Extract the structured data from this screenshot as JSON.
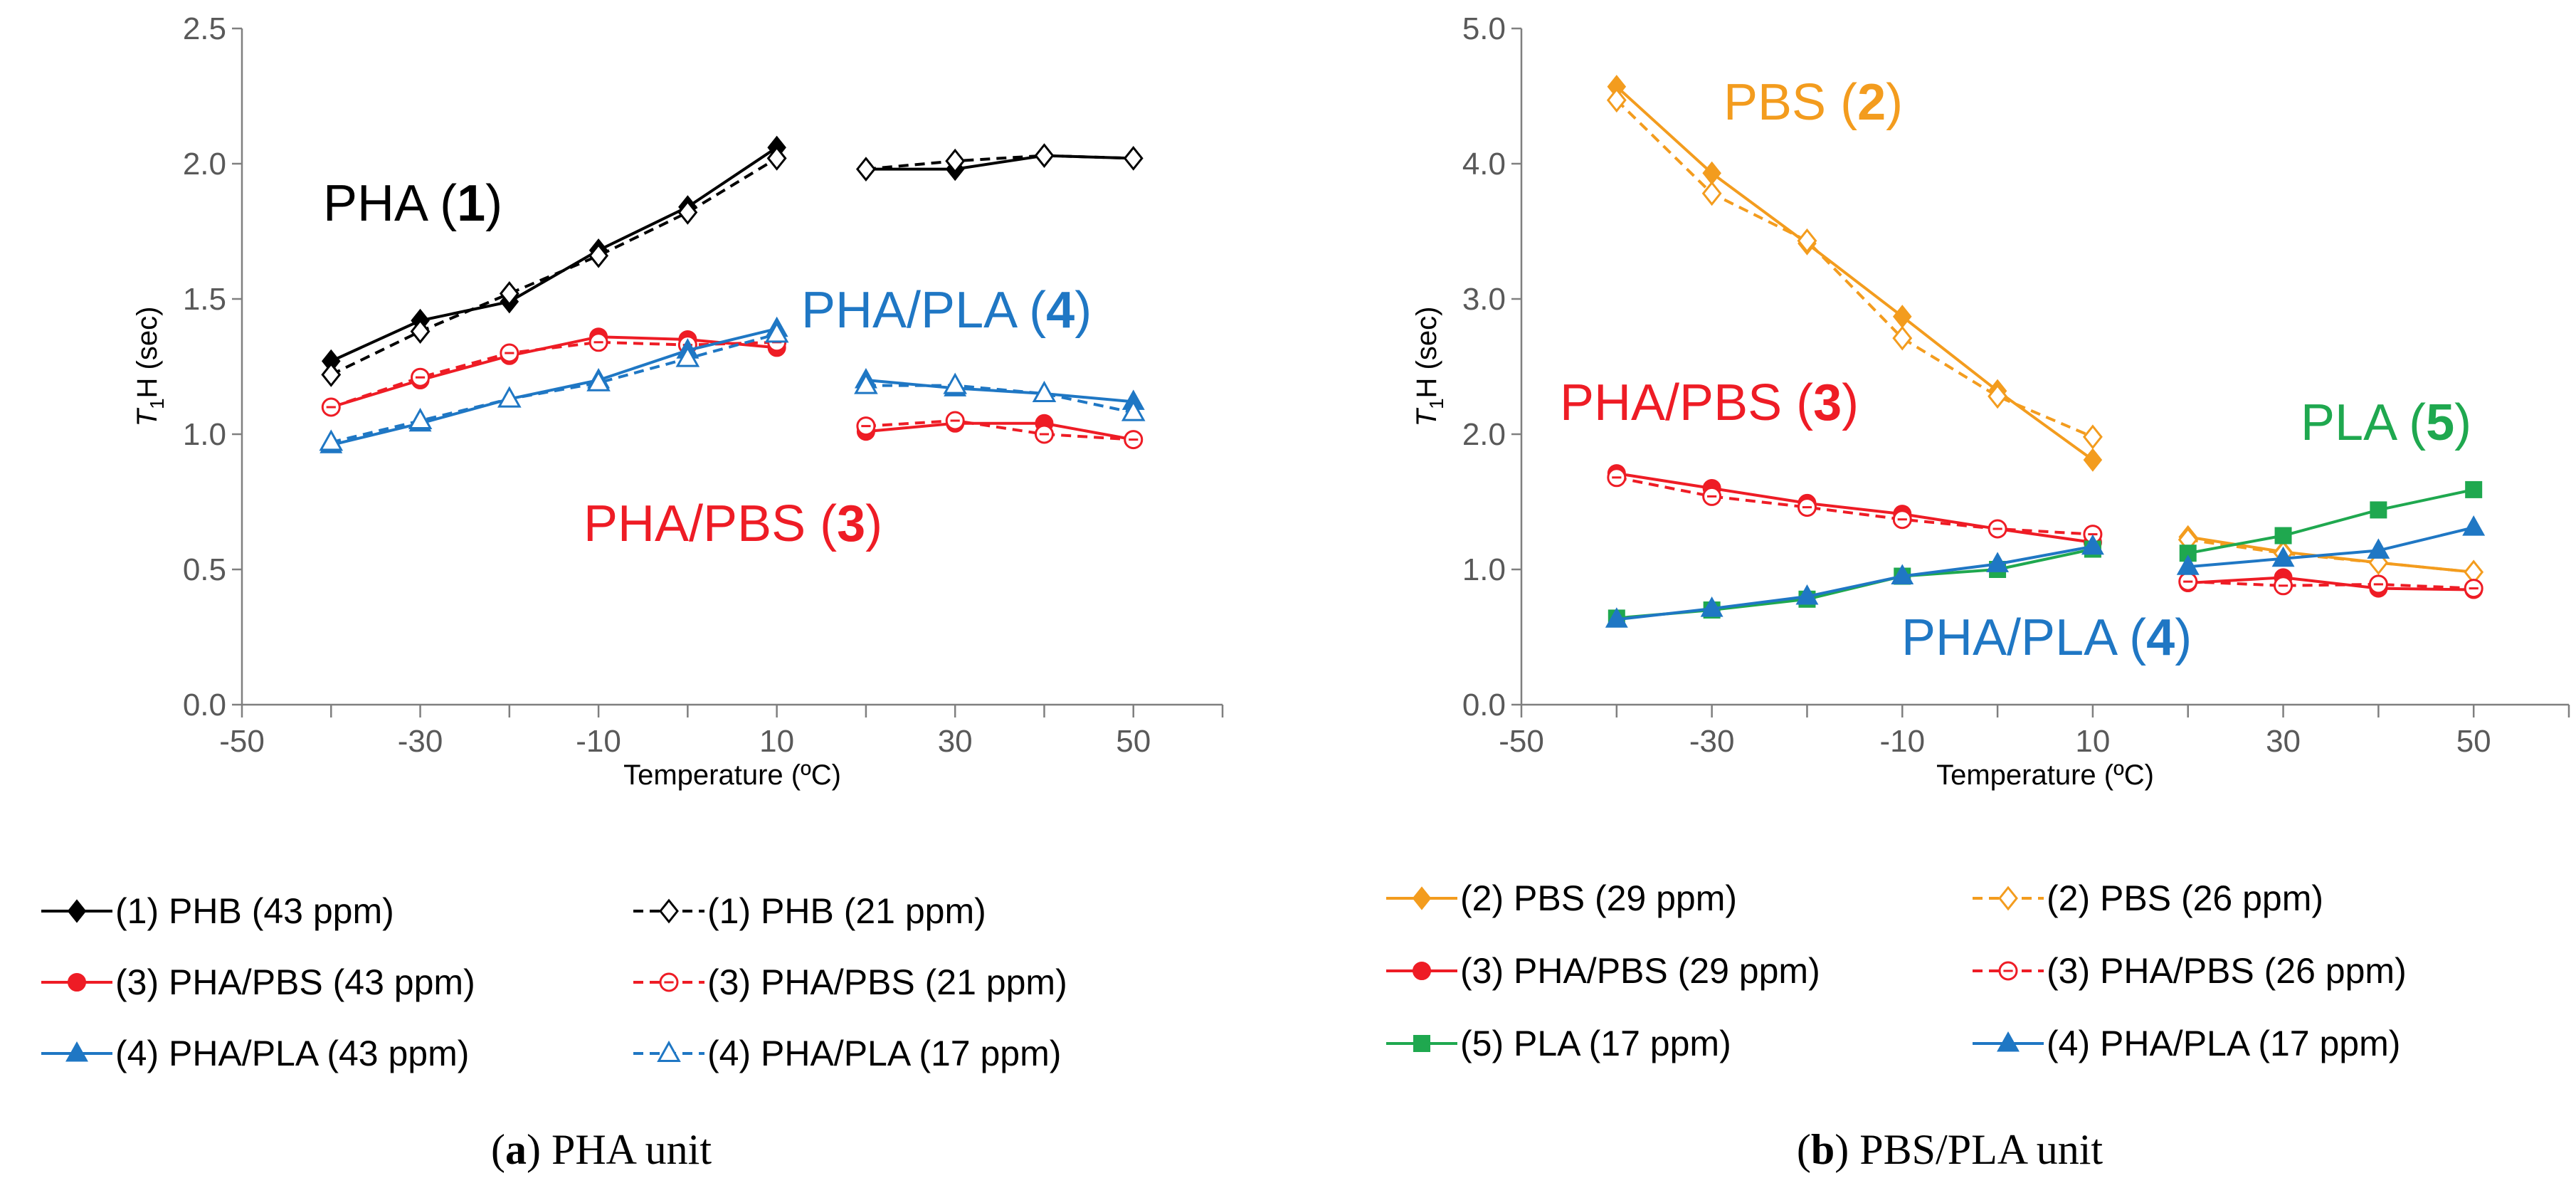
{
  "chart_data": [
    {
      "type": "line",
      "caption": {
        "letter": "a",
        "text": "PHA unit"
      },
      "xlabel": "Temperature (ºC)",
      "ylabel": {
        "main": "T",
        "sub": "1",
        "rest": "H (sec)"
      },
      "xlim": [
        -50,
        60
      ],
      "ylim": [
        0,
        2.5
      ],
      "xticks": [
        -50,
        -30,
        -10,
        10,
        30,
        50
      ],
      "xtick_labels": [
        "-50",
        "-30",
        "-10",
        "10",
        "30",
        "50"
      ],
      "yticks": [
        0,
        0.5,
        1.0,
        1.5,
        2.0,
        2.5
      ],
      "ytick_labels": [
        "0.0",
        "0.5",
        "1.0",
        "1.5",
        "2.0",
        "2.5"
      ],
      "annotations": [
        {
          "name": "pha",
          "pre": "PHA (",
          "num": "1",
          "post": ")",
          "color": "#000000"
        },
        {
          "name": "pha-pla",
          "pre": "PHA/PLA (",
          "num": "4",
          "post": ")",
          "color": "#1f77c4"
        },
        {
          "name": "pha-pbs",
          "pre": "PHA/PBS (",
          "num": "3",
          "post": ")",
          "color": "#ee1c25"
        }
      ],
      "series": [
        {
          "name": "(1) PHB (43 ppm)",
          "color": "#000000",
          "marker": "diamond",
          "filled": true,
          "dashed": false,
          "segments": [
            [
              [
                -40,
                1.27
              ],
              [
                -30,
                1.42
              ],
              [
                -20,
                1.49
              ],
              [
                -10,
                1.68
              ],
              [
                0,
                1.84
              ],
              [
                10,
                2.06
              ]
            ],
            [
              [
                20,
                1.98
              ],
              [
                30,
                1.98
              ],
              [
                40,
                2.03
              ],
              [
                50,
                2.02
              ]
            ]
          ]
        },
        {
          "name": "(1) PHB (21 ppm)",
          "color": "#000000",
          "marker": "diamond",
          "filled": false,
          "dashed": true,
          "segments": [
            [
              [
                -40,
                1.22
              ],
              [
                -30,
                1.38
              ],
              [
                -20,
                1.52
              ],
              [
                -10,
                1.66
              ],
              [
                0,
                1.82
              ],
              [
                10,
                2.02
              ]
            ],
            [
              [
                20,
                1.98
              ],
              [
                30,
                2.01
              ],
              [
                40,
                2.03
              ],
              [
                50,
                2.02
              ]
            ]
          ]
        },
        {
          "name": "(3) PHA/PBS (43 ppm)",
          "color": "#ee1c25",
          "marker": "circle",
          "filled": true,
          "dashed": false,
          "segments": [
            [
              [
                -40,
                1.1
              ],
              [
                -30,
                1.2
              ],
              [
                -20,
                1.29
              ],
              [
                -10,
                1.36
              ],
              [
                0,
                1.35
              ],
              [
                10,
                1.32
              ]
            ],
            [
              [
                20,
                1.01
              ],
              [
                30,
                1.04
              ],
              [
                40,
                1.04
              ],
              [
                50,
                0.98
              ]
            ]
          ]
        },
        {
          "name": "(3) PHA/PBS (21 ppm)",
          "color": "#ee1c25",
          "marker": "circle",
          "filled": false,
          "dashed": true,
          "segments": [
            [
              [
                -40,
                1.1
              ],
              [
                -30,
                1.21
              ],
              [
                -20,
                1.3
              ],
              [
                -10,
                1.34
              ],
              [
                0,
                1.33
              ],
              [
                10,
                1.34
              ]
            ],
            [
              [
                20,
                1.03
              ],
              [
                30,
                1.05
              ],
              [
                40,
                1.0
              ],
              [
                50,
                0.98
              ]
            ]
          ]
        },
        {
          "name": "(4) PHA/PLA (43 ppm)",
          "color": "#1f77c4",
          "marker": "triangle",
          "filled": true,
          "dashed": false,
          "segments": [
            [
              [
                -40,
                0.96
              ],
              [
                -30,
                1.04
              ],
              [
                -20,
                1.13
              ],
              [
                -10,
                1.2
              ],
              [
                0,
                1.31
              ],
              [
                10,
                1.39
              ]
            ],
            [
              [
                20,
                1.2
              ],
              [
                30,
                1.17
              ],
              [
                40,
                1.15
              ],
              [
                50,
                1.12
              ]
            ]
          ]
        },
        {
          "name": "(4) PHA/PLA (17 ppm)",
          "color": "#1f77c4",
          "marker": "triangle",
          "filled": false,
          "dashed": true,
          "segments": [
            [
              [
                -40,
                0.97
              ],
              [
                -30,
                1.05
              ],
              [
                -20,
                1.13
              ],
              [
                -10,
                1.19
              ],
              [
                0,
                1.28
              ],
              [
                10,
                1.37
              ]
            ],
            [
              [
                20,
                1.18
              ],
              [
                30,
                1.18
              ],
              [
                40,
                1.15
              ],
              [
                50,
                1.08
              ]
            ]
          ]
        }
      ]
    },
    {
      "type": "line",
      "caption": {
        "letter": "b",
        "text": "PBS/PLA unit"
      },
      "xlabel": "Temperature (ºC)",
      "ylabel": {
        "main": "T",
        "sub": "1",
        "rest": "H (sec)"
      },
      "xlim": [
        -50,
        60
      ],
      "ylim": [
        0,
        5.0
      ],
      "xticks": [
        -50,
        -30,
        -10,
        10,
        30,
        50
      ],
      "xtick_labels": [
        "-50",
        "-30",
        "-10",
        "10",
        "30",
        "50"
      ],
      "yticks": [
        0,
        1,
        2,
        3,
        4,
        5
      ],
      "ytick_labels": [
        "0.0",
        "1.0",
        "2.0",
        "3.0",
        "4.0",
        "5.0"
      ],
      "annotations": [
        {
          "name": "pbs",
          "pre": "PBS (",
          "num": "2",
          "post": ")",
          "color": "#f39c1e"
        },
        {
          "name": "pha-pbs",
          "pre": "PHA/PBS (",
          "num": "3",
          "post": ")",
          "color": "#ee1c25"
        },
        {
          "name": "pla",
          "pre": "PLA (",
          "num": "5",
          "post": ")",
          "color": "#1fa84f"
        },
        {
          "name": "pha-pla",
          "pre": "PHA/PLA (",
          "num": "4",
          "post": ")",
          "color": "#1f77c4"
        }
      ],
      "series": [
        {
          "name": "(2) PBS (29 ppm)",
          "color": "#f39c1e",
          "marker": "diamond",
          "filled": true,
          "dashed": false,
          "segments": [
            [
              [
                -40,
                4.57
              ],
              [
                -30,
                3.93
              ],
              [
                -20,
                3.41
              ],
              [
                -10,
                2.87
              ],
              [
                0,
                2.32
              ],
              [
                10,
                1.81
              ]
            ],
            [
              [
                20,
                1.24
              ],
              [
                30,
                1.13
              ],
              [
                40,
                1.05
              ],
              [
                50,
                0.98
              ]
            ]
          ]
        },
        {
          "name": "(2) PBS (26 ppm)",
          "color": "#f39c1e",
          "marker": "diamond",
          "filled": false,
          "dashed": true,
          "segments": [
            [
              [
                -40,
                4.47
              ],
              [
                -30,
                3.78
              ],
              [
                -20,
                3.43
              ],
              [
                -10,
                2.71
              ],
              [
                0,
                2.28
              ],
              [
                10,
                1.98
              ]
            ],
            [
              [
                20,
                1.22
              ],
              [
                30,
                1.12
              ],
              [
                40,
                1.05
              ],
              [
                50,
                0.98
              ]
            ]
          ]
        },
        {
          "name": "(3) PHA/PBS (29 ppm)",
          "color": "#ee1c25",
          "marker": "circle",
          "filled": true,
          "dashed": false,
          "segments": [
            [
              [
                -40,
                1.71
              ],
              [
                -30,
                1.6
              ],
              [
                -20,
                1.49
              ],
              [
                -10,
                1.41
              ],
              [
                0,
                1.3
              ],
              [
                10,
                1.2
              ]
            ],
            [
              [
                20,
                0.9
              ],
              [
                30,
                0.94
              ],
              [
                40,
                0.86
              ],
              [
                50,
                0.85
              ]
            ]
          ]
        },
        {
          "name": "(3) PHA/PBS (26 ppm)",
          "color": "#ee1c25",
          "marker": "circle",
          "filled": false,
          "dashed": true,
          "segments": [
            [
              [
                -40,
                1.68
              ],
              [
                -30,
                1.54
              ],
              [
                -20,
                1.46
              ],
              [
                -10,
                1.37
              ],
              [
                0,
                1.3
              ],
              [
                10,
                1.26
              ]
            ],
            [
              [
                20,
                0.91
              ],
              [
                30,
                0.88
              ],
              [
                40,
                0.89
              ],
              [
                50,
                0.86
              ]
            ]
          ]
        },
        {
          "name": "(5) PLA (17 ppm)",
          "color": "#1fa84f",
          "marker": "square",
          "filled": true,
          "dashed": false,
          "segments": [
            [
              [
                -40,
                0.64
              ],
              [
                -30,
                0.7
              ],
              [
                -20,
                0.78
              ],
              [
                -10,
                0.95
              ],
              [
                0,
                1.0
              ],
              [
                10,
                1.15
              ]
            ],
            [
              [
                20,
                1.12
              ],
              [
                30,
                1.25
              ],
              [
                40,
                1.44
              ],
              [
                50,
                1.59
              ]
            ]
          ]
        },
        {
          "name": "(4) PHA/PLA (17 ppm)",
          "color": "#1f77c4",
          "marker": "triangle",
          "filled": true,
          "dashed": false,
          "segments": [
            [
              [
                -40,
                0.63
              ],
              [
                -30,
                0.71
              ],
              [
                -20,
                0.8
              ],
              [
                -10,
                0.95
              ],
              [
                0,
                1.04
              ],
              [
                10,
                1.17
              ]
            ],
            [
              [
                20,
                1.02
              ],
              [
                30,
                1.08
              ],
              [
                40,
                1.14
              ],
              [
                50,
                1.31
              ]
            ]
          ]
        }
      ]
    }
  ]
}
